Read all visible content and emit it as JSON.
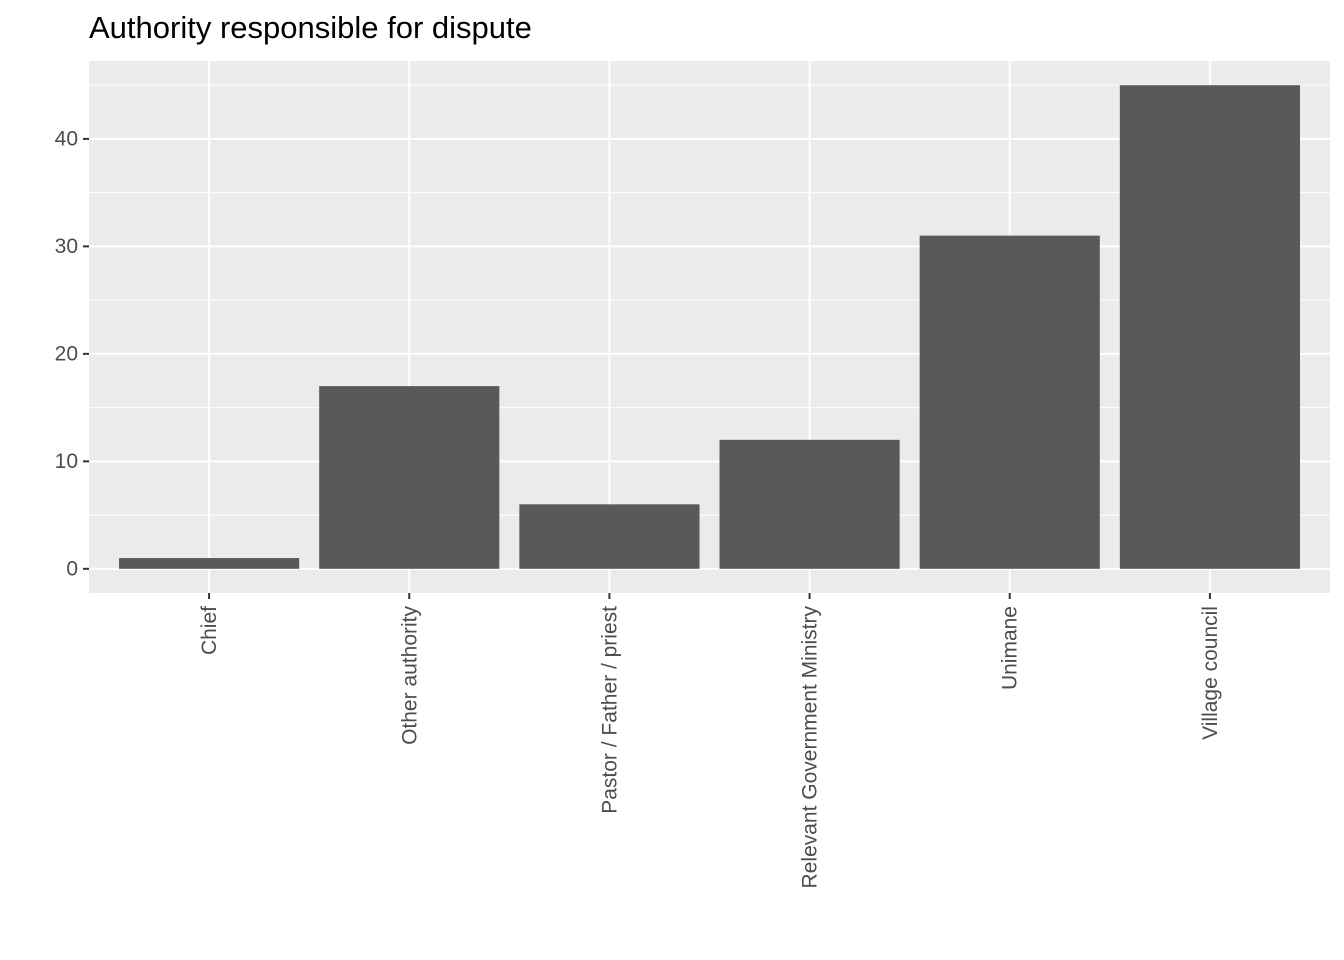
{
  "chart_data": {
    "type": "bar",
    "title": "Authority responsible for dispute",
    "xlabel": "",
    "ylabel": "",
    "categories": [
      "Chief",
      "Other authority",
      "Pastor / Father / priest",
      "Relevant Government Ministry",
      "Unimane",
      "Village council"
    ],
    "values": [
      1,
      17,
      6,
      12,
      31,
      45
    ],
    "yticks": [
      0,
      10,
      20,
      30,
      40
    ],
    "ylim": [
      -2.25,
      47.25
    ],
    "grid": true,
    "x_tick_rotation": "vertical",
    "colors": {
      "panel": "#EBEBEB",
      "grid": "#FFFFFF",
      "bar": "#595959",
      "tick_text": "#4D4D4D",
      "tick_mark": "#333333"
    }
  }
}
